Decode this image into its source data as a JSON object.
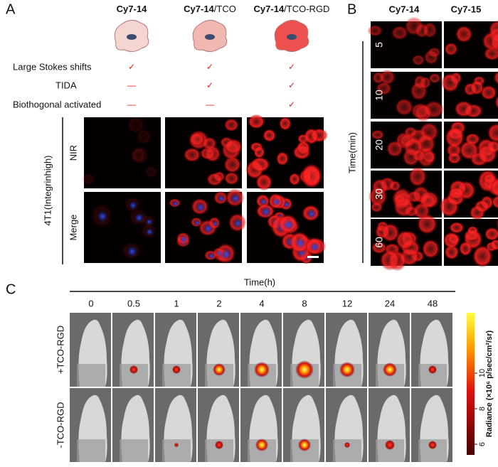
{
  "panel_a": {
    "label": "A",
    "columns": [
      [
        "Cy7-14"
      ],
      [
        "Cy7-14",
        "/TCO"
      ],
      [
        "Cy7-14",
        "/TCO-RGD"
      ]
    ],
    "features": [
      {
        "name": "Large Stokes shifts",
        "marks": [
          "✓",
          "✓",
          "✓"
        ]
      },
      {
        "name": "TIDA",
        "marks": [
          "—",
          "✓",
          "✓"
        ]
      },
      {
        "name": "Biothogonal activated",
        "marks": [
          "—",
          "—",
          "✓"
        ]
      }
    ],
    "cell_line": "4T1(Integrinhigh)",
    "channels": [
      "NIR",
      "Merge"
    ]
  },
  "panel_b": {
    "label": "B",
    "columns": [
      "Cy7-14",
      "Cy7-15"
    ],
    "axis_label": "Time(min)",
    "times": [
      "5",
      "10",
      "20",
      "30",
      "60"
    ]
  },
  "panel_c": {
    "label": "C",
    "axis_label": "Time(h)",
    "times": [
      "0",
      "0.5",
      "1",
      "2",
      "4",
      "8",
      "12",
      "24",
      "48"
    ],
    "groups": [
      "+TCO-RGD",
      "-TCO-RGD"
    ],
    "colorbar": {
      "label": "Radiance (×10⁶ p/sec/cm²/sr)",
      "lim": [
        5.4,
        13.4
      ],
      "ticks": [
        6,
        8,
        10
      ]
    }
  }
}
